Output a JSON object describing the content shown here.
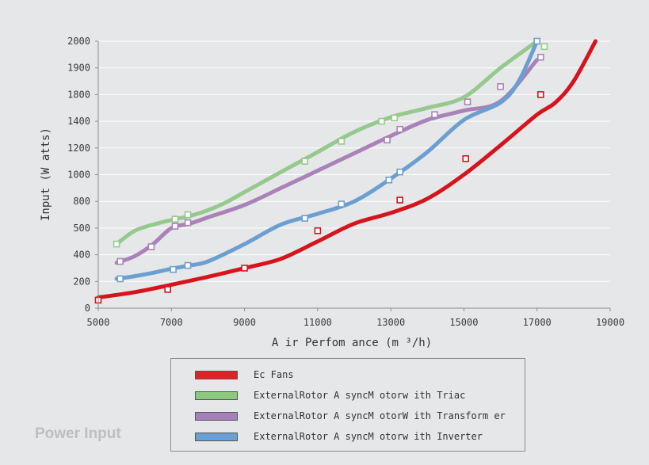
{
  "caption": "Power Input",
  "chart_data": {
    "type": "line",
    "title": "",
    "xlabel": "A ir Perfom ance (m ³/h)",
    "ylabel": "Input (W atts)",
    "x_ticks": [
      5000,
      7000,
      9000,
      11000,
      13000,
      15000,
      17000,
      19000
    ],
    "y_ticks": [
      0,
      200,
      400,
      500,
      800,
      1000,
      1200,
      1400,
      1800,
      1900,
      2000
    ],
    "xlim": [
      5000,
      19000
    ],
    "ylim": [
      0,
      2000
    ],
    "grid": true,
    "legend_position": "bottom",
    "series": [
      {
        "name": "Ec Fans",
        "color": "#d7141c",
        "swatch": "#e02227",
        "x": [
          5000,
          6000,
          6900,
          8000,
          9000,
          10000,
          11000,
          12000,
          13000,
          14000,
          15000,
          16000,
          17000,
          17500,
          18000,
          18600
        ],
        "y": [
          80,
          120,
          170,
          235,
          300,
          370,
          450,
          550,
          670,
          820,
          1000,
          1220,
          1500,
          1680,
          1850,
          2000
        ],
        "markers": [
          [
            5000,
            60
          ],
          [
            6900,
            140
          ],
          [
            9000,
            300
          ],
          [
            11000,
            490
          ],
          [
            13250,
            810
          ],
          [
            15050,
            1120
          ],
          [
            17100,
            1800
          ]
        ]
      },
      {
        "name": "ExternalRotor A syncM otorw ith Triac",
        "color": "#95c98d",
        "swatch": "#8cc87f",
        "x": [
          5500,
          6000,
          6600,
          7100,
          7450,
          8000,
          8500,
          9000,
          10000,
          11000,
          12000,
          13000,
          14000,
          15000,
          16000,
          17000
        ],
        "y": [
          440,
          490,
          550,
          600,
          630,
          700,
          790,
          870,
          1020,
          1170,
          1320,
          1460,
          1600,
          1760,
          1900,
          2000
        ],
        "markers": [
          [
            5500,
            440
          ],
          [
            7100,
            600
          ],
          [
            7450,
            650
          ],
          [
            10650,
            1100
          ],
          [
            11650,
            1250
          ],
          [
            12750,
            1400
          ],
          [
            13100,
            1450
          ],
          [
            17200,
            1980
          ]
        ]
      },
      {
        "name": "ExternalRotor A syncM otorW ith Transform er",
        "color": "#a982b8",
        "swatch": "#a77fbb",
        "x": [
          5500,
          6000,
          6500,
          7000,
          7500,
          8000,
          9000,
          10000,
          11000,
          12000,
          13000,
          14000,
          15000,
          16000,
          17000
        ],
        "y": [
          340,
          390,
          440,
          500,
          550,
          620,
          760,
          900,
          1030,
          1160,
          1290,
          1420,
          1560,
          1700,
          1930
        ],
        "markers": [
          [
            5600,
            350
          ],
          [
            6450,
            430
          ],
          [
            7100,
            520
          ],
          [
            7450,
            560
          ],
          [
            12900,
            1260
          ],
          [
            13250,
            1340
          ],
          [
            14200,
            1500
          ],
          [
            15100,
            1690
          ],
          [
            16000,
            1830
          ],
          [
            17100,
            1940
          ]
        ]
      },
      {
        "name": "ExternalRotor A syncM otorw ith Inverter",
        "color": "#6c9fd1",
        "swatch": "#6aa0d8",
        "x": [
          5500,
          6000,
          6500,
          7000,
          7500,
          8000,
          9000,
          10000,
          11000,
          12000,
          13000,
          14000,
          15000,
          16000,
          16500,
          17000
        ],
        "y": [
          220,
          240,
          265,
          295,
          320,
          350,
          440,
          540,
          660,
          800,
          970,
          1170,
          1420,
          1680,
          1850,
          2000
        ],
        "markers": [
          [
            5600,
            220
          ],
          [
            7050,
            290
          ],
          [
            7450,
            320
          ],
          [
            10650,
            610
          ],
          [
            11650,
            770
          ],
          [
            12950,
            960
          ],
          [
            13250,
            1020
          ],
          [
            17000,
            2000
          ]
        ]
      }
    ]
  }
}
